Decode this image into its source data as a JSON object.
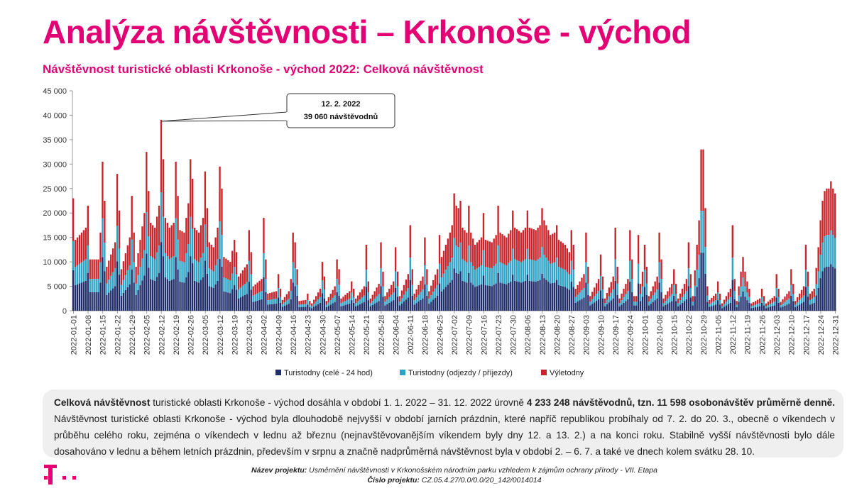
{
  "header": {
    "title": "Analýza návštěvnosti – Krkonoše - východ",
    "subtitle": "Návštěvnost turistické oblasti Krkonoše - východ 2022: Celková návštěvnost"
  },
  "colors": {
    "accent": "#e20074",
    "series_overnight": "#1f2d6b",
    "series_arrivals": "#2ea3c6",
    "series_day": "#c8242a"
  },
  "chart_data": {
    "type": "bar",
    "stacked": true,
    "ylim": [
      0,
      45000
    ],
    "yticks": [
      "0",
      "5 000",
      "10 000",
      "15 000",
      "20 000",
      "25 000",
      "30 000",
      "35 000",
      "40 000",
      "45 000"
    ],
    "x_start": "2022-01-01",
    "x_end": "2022-12-31",
    "x_tick_labels": [
      "2022-01-01",
      "2022-01-08",
      "2022-01-15",
      "2022-01-22",
      "2022-01-29",
      "2022-02-05",
      "2022-02-12",
      "2022-02-19",
      "2022-02-26",
      "2022-03-05",
      "2022-03-12",
      "2022-03-19",
      "2022-03-26",
      "2022-04-02",
      "2022-04-09",
      "2022-04-16",
      "2022-04-23",
      "2022-04-30",
      "2022-05-07",
      "2022-05-14",
      "2022-05-21",
      "2022-05-28",
      "2022-06-04",
      "2022-06-11",
      "2022-06-18",
      "2022-06-25",
      "2022-07-02",
      "2022-07-09",
      "2022-07-16",
      "2022-07-23",
      "2022-07-30",
      "2022-08-06",
      "2022-08-13",
      "2022-08-20",
      "2022-08-27",
      "2022-09-03",
      "2022-09-10",
      "2022-09-17",
      "2022-09-24",
      "2022-10-01",
      "2022-10-08",
      "2022-10-15",
      "2022-10-22",
      "2022-10-29",
      "2022-11-05",
      "2022-11-12",
      "2022-11-19",
      "2022-11-26",
      "2022-12-03",
      "2022-12-10",
      "2022-12-17",
      "2022-12-24",
      "2022-12-31"
    ],
    "legend_position": "bottom",
    "grid": false,
    "series": [
      {
        "name": "Turistodny (celé - 24 hod)",
        "color": "#1f2d6b"
      },
      {
        "name": "Turistodny (odjezdy / příjezdy)",
        "color": "#2ea3c6"
      },
      {
        "name": "Výletodny",
        "color": "#c8242a"
      }
    ],
    "totals_anchor": [
      [
        "2022-01-01",
        23000
      ],
      [
        "2022-01-02",
        14500
      ],
      [
        "2022-01-07",
        17000
      ],
      [
        "2022-01-08",
        21500
      ],
      [
        "2022-01-09",
        10500
      ],
      [
        "2022-01-13",
        10500
      ],
      [
        "2022-01-14",
        16000
      ],
      [
        "2022-01-15",
        30500
      ],
      [
        "2022-01-16",
        22500
      ],
      [
        "2022-01-17",
        9000
      ],
      [
        "2022-01-21",
        14000
      ],
      [
        "2022-01-22",
        28000
      ],
      [
        "2022-01-23",
        20500
      ],
      [
        "2022-01-24",
        8500
      ],
      [
        "2022-01-28",
        15000
      ],
      [
        "2022-01-29",
        23500
      ],
      [
        "2022-01-30",
        16000
      ],
      [
        "2022-01-31",
        9000
      ],
      [
        "2022-02-04",
        20000
      ],
      [
        "2022-02-05",
        32500
      ],
      [
        "2022-02-06",
        24500
      ],
      [
        "2022-02-07",
        18000
      ],
      [
        "2022-02-09",
        17000
      ],
      [
        "2022-02-11",
        21500
      ],
      [
        "2022-02-12",
        39060
      ],
      [
        "2022-02-13",
        31000
      ],
      [
        "2022-02-14",
        19000
      ],
      [
        "2022-02-16",
        17000
      ],
      [
        "2022-02-18",
        18000
      ],
      [
        "2022-02-19",
        30500
      ],
      [
        "2022-02-20",
        23500
      ],
      [
        "2022-02-21",
        16500
      ],
      [
        "2022-02-23",
        16000
      ],
      [
        "2022-02-25",
        22000
      ],
      [
        "2022-02-26",
        31000
      ],
      [
        "2022-02-27",
        27000
      ],
      [
        "2022-02-28",
        17000
      ],
      [
        "2022-03-02",
        16000
      ],
      [
        "2022-03-04",
        19000
      ],
      [
        "2022-03-05",
        28500
      ],
      [
        "2022-03-06",
        21000
      ],
      [
        "2022-03-07",
        14000
      ],
      [
        "2022-03-09",
        13000
      ],
      [
        "2022-03-11",
        17000
      ],
      [
        "2022-03-12",
        29500
      ],
      [
        "2022-03-13",
        25000
      ],
      [
        "2022-03-14",
        11000
      ],
      [
        "2022-03-17",
        10000
      ],
      [
        "2022-03-19",
        14500
      ],
      [
        "2022-03-20",
        12000
      ],
      [
        "2022-03-21",
        7000
      ],
      [
        "2022-03-25",
        9500
      ],
      [
        "2022-03-26",
        16500
      ],
      [
        "2022-03-27",
        12000
      ],
      [
        "2022-03-28",
        5000
      ],
      [
        "2022-04-01",
        6500
      ],
      [
        "2022-04-02",
        19000
      ],
      [
        "2022-04-03",
        10500
      ],
      [
        "2022-04-04",
        3500
      ],
      [
        "2022-04-08",
        4000
      ],
      [
        "2022-04-09",
        7500
      ],
      [
        "2022-04-10",
        4500
      ],
      [
        "2022-04-11",
        2200
      ],
      [
        "2022-04-14",
        4000
      ],
      [
        "2022-04-15",
        6500
      ],
      [
        "2022-04-16",
        16000
      ],
      [
        "2022-04-17",
        14000
      ],
      [
        "2022-04-18",
        8500
      ],
      [
        "2022-04-19",
        2000
      ],
      [
        "2022-04-22",
        2200
      ],
      [
        "2022-04-23",
        3500
      ],
      [
        "2022-04-24",
        2000
      ],
      [
        "2022-04-25",
        1500
      ],
      [
        "2022-04-29",
        4500
      ],
      [
        "2022-04-30",
        10000
      ],
      [
        "2022-05-01",
        7000
      ],
      [
        "2022-05-02",
        2000
      ],
      [
        "2022-05-06",
        5000
      ],
      [
        "2022-05-07",
        10500
      ],
      [
        "2022-05-08",
        8500
      ],
      [
        "2022-05-09",
        2500
      ],
      [
        "2022-05-13",
        4000
      ],
      [
        "2022-05-14",
        6000
      ],
      [
        "2022-05-15",
        4500
      ],
      [
        "2022-05-16",
        2500
      ],
      [
        "2022-05-20",
        5000
      ],
      [
        "2022-05-21",
        13500
      ],
      [
        "2022-05-22",
        6000
      ],
      [
        "2022-05-23",
        2500
      ],
      [
        "2022-05-27",
        5500
      ],
      [
        "2022-05-28",
        14000
      ],
      [
        "2022-05-29",
        8000
      ],
      [
        "2022-05-30",
        3000
      ],
      [
        "2022-06-03",
        6000
      ],
      [
        "2022-06-04",
        13000
      ],
      [
        "2022-06-05",
        8000
      ],
      [
        "2022-06-06",
        3000
      ],
      [
        "2022-06-10",
        7500
      ],
      [
        "2022-06-11",
        17500
      ],
      [
        "2022-06-12",
        8500
      ],
      [
        "2022-06-13",
        3500
      ],
      [
        "2022-06-17",
        7000
      ],
      [
        "2022-06-18",
        15000
      ],
      [
        "2022-06-19",
        8500
      ],
      [
        "2022-06-20",
        4000
      ],
      [
        "2022-06-24",
        8500
      ],
      [
        "2022-06-25",
        15500
      ],
      [
        "2022-06-26",
        11000
      ],
      [
        "2022-06-30",
        16000
      ],
      [
        "2022-07-01",
        17500
      ],
      [
        "2022-07-02",
        24000
      ],
      [
        "2022-07-03",
        21500
      ],
      [
        "2022-07-04",
        21000
      ],
      [
        "2022-07-05",
        22500
      ],
      [
        "2022-07-06",
        17000
      ],
      [
        "2022-07-08",
        16000
      ],
      [
        "2022-07-09",
        21500
      ],
      [
        "2022-07-10",
        16000
      ],
      [
        "2022-07-12",
        13500
      ],
      [
        "2022-07-15",
        15000
      ],
      [
        "2022-07-16",
        20000
      ],
      [
        "2022-07-17",
        14500
      ],
      [
        "2022-07-20",
        14000
      ],
      [
        "2022-07-22",
        15500
      ],
      [
        "2022-07-23",
        21500
      ],
      [
        "2022-07-24",
        16000
      ],
      [
        "2022-07-27",
        15000
      ],
      [
        "2022-07-29",
        16500
      ],
      [
        "2022-07-30",
        20500
      ],
      [
        "2022-07-31",
        17000
      ],
      [
        "2022-08-03",
        16000
      ],
      [
        "2022-08-05",
        17000
      ],
      [
        "2022-08-06",
        20500
      ],
      [
        "2022-08-07",
        17000
      ],
      [
        "2022-08-10",
        16500
      ],
      [
        "2022-08-12",
        17500
      ],
      [
        "2022-08-13",
        21000
      ],
      [
        "2022-08-14",
        18500
      ],
      [
        "2022-08-17",
        15500
      ],
      [
        "2022-08-19",
        16000
      ],
      [
        "2022-08-20",
        17500
      ],
      [
        "2022-08-21",
        14500
      ],
      [
        "2022-08-24",
        13500
      ],
      [
        "2022-08-26",
        12000
      ],
      [
        "2022-08-27",
        16500
      ],
      [
        "2022-08-28",
        13500
      ],
      [
        "2022-08-29",
        4500
      ],
      [
        "2022-09-02",
        7500
      ],
      [
        "2022-09-03",
        16000
      ],
      [
        "2022-09-04",
        9000
      ],
      [
        "2022-09-05",
        3000
      ],
      [
        "2022-09-09",
        6500
      ],
      [
        "2022-09-10",
        11500
      ],
      [
        "2022-09-11",
        7000
      ],
      [
        "2022-09-12",
        2500
      ],
      [
        "2022-09-16",
        7000
      ],
      [
        "2022-09-17",
        17000
      ],
      [
        "2022-09-18",
        9000
      ],
      [
        "2022-09-19",
        2500
      ],
      [
        "2022-09-23",
        6500
      ],
      [
        "2022-09-24",
        16500
      ],
      [
        "2022-09-25",
        10500
      ],
      [
        "2022-09-26",
        3000
      ],
      [
        "2022-09-27",
        3000
      ],
      [
        "2022-09-28",
        15500
      ],
      [
        "2022-09-29",
        5500
      ],
      [
        "2022-09-30",
        8000
      ],
      [
        "2022-10-01",
        13500
      ],
      [
        "2022-10-02",
        9000
      ],
      [
        "2022-10-03",
        3000
      ],
      [
        "2022-10-07",
        7000
      ],
      [
        "2022-10-08",
        16000
      ],
      [
        "2022-10-09",
        10500
      ],
      [
        "2022-10-10",
        2500
      ],
      [
        "2022-10-14",
        5500
      ],
      [
        "2022-10-15",
        8500
      ],
      [
        "2022-10-16",
        5500
      ],
      [
        "2022-10-17",
        2500
      ],
      [
        "2022-10-21",
        6500
      ],
      [
        "2022-10-22",
        14000
      ],
      [
        "2022-10-23",
        7500
      ],
      [
        "2022-10-24",
        3000
      ],
      [
        "2022-10-26",
        13500
      ],
      [
        "2022-10-27",
        18500
      ],
      [
        "2022-10-28",
        33000
      ],
      [
        "2022-10-29",
        33000
      ],
      [
        "2022-10-30",
        21000
      ],
      [
        "2022-10-31",
        5000
      ],
      [
        "2022-11-01",
        2200
      ],
      [
        "2022-11-04",
        3500
      ],
      [
        "2022-11-05",
        6000
      ],
      [
        "2022-11-06",
        3500
      ],
      [
        "2022-11-07",
        1500
      ],
      [
        "2022-11-11",
        4500
      ],
      [
        "2022-11-12",
        17500
      ],
      [
        "2022-11-13",
        6500
      ],
      [
        "2022-11-14",
        2000
      ],
      [
        "2022-11-17",
        11000
      ],
      [
        "2022-11-18",
        8000
      ],
      [
        "2022-11-19",
        6000
      ],
      [
        "2022-11-20",
        4500
      ],
      [
        "2022-11-21",
        1500
      ],
      [
        "2022-11-25",
        2500
      ],
      [
        "2022-11-26",
        4500
      ],
      [
        "2022-11-27",
        3000
      ],
      [
        "2022-11-28",
        1500
      ],
      [
        "2022-12-02",
        3000
      ],
      [
        "2022-12-03",
        7500
      ],
      [
        "2022-12-04",
        4500
      ],
      [
        "2022-12-05",
        1800
      ],
      [
        "2022-12-09",
        4000
      ],
      [
        "2022-12-10",
        8500
      ],
      [
        "2022-12-11",
        5500
      ],
      [
        "2022-12-12",
        2000
      ],
      [
        "2022-12-16",
        5000
      ],
      [
        "2022-12-17",
        13500
      ],
      [
        "2022-12-18",
        8000
      ],
      [
        "2022-12-19",
        3500
      ],
      [
        "2022-12-21",
        4500
      ],
      [
        "2022-12-23",
        13000
      ],
      [
        "2022-12-24",
        18500
      ],
      [
        "2022-12-25",
        22500
      ],
      [
        "2022-12-26",
        24500
      ],
      [
        "2022-12-27",
        25000
      ],
      [
        "2022-12-28",
        25000
      ],
      [
        "2022-12-29",
        26500
      ],
      [
        "2022-12-30",
        25000
      ],
      [
        "2022-12-31",
        24000
      ]
    ],
    "annotation": {
      "date": "2022-02-12",
      "line1": "12. 2. 2022",
      "line2": "39 060 návštěvodnů"
    }
  },
  "summary": {
    "part1_bold": "Celková návštěvnost",
    "part2": " turistické oblasti Krkonoše - východ dosáhla v období 1. 1. 2022 – 31. 12. 2022 úrovně ",
    "part3_bold": "4 233 248 návštěvodnů, tzn. 11 598 osobonávštěv průměrně denně.",
    "part4": " Návštěvnost turistické oblasti Krkonoše - východ byla dlouhodobě nejvyšší v období jarních prázdnin, které napříč republikou probíhaly od 7. 2. do 20. 3., obecně o víkendech v průběhu celého roku,  zejména o víkendech v lednu až březnu (nejnavštěvovanějším víkendem byly dny 12. a 13. 2.) a na konci roku. Stabilně vyšší návštěvnosti bylo dále dosahováno v lednu a během letních prázdnin, především v srpnu a značně nadprůměrná návštěvnost byla v období 2. – 6. 7. a také ve dnech kolem svátku 28. 10."
  },
  "footer": {
    "project_label": "Název projektu:",
    "project_name": " Usměrnění návštěvnosti v Krkonošském národním parku vzhledem k zájmům ochrany přírody - VII. Etapa",
    "number_label": "Číslo projektu:",
    "number_value": " CZ.05.4.27/0.0/0.0/20_142/0014014"
  }
}
